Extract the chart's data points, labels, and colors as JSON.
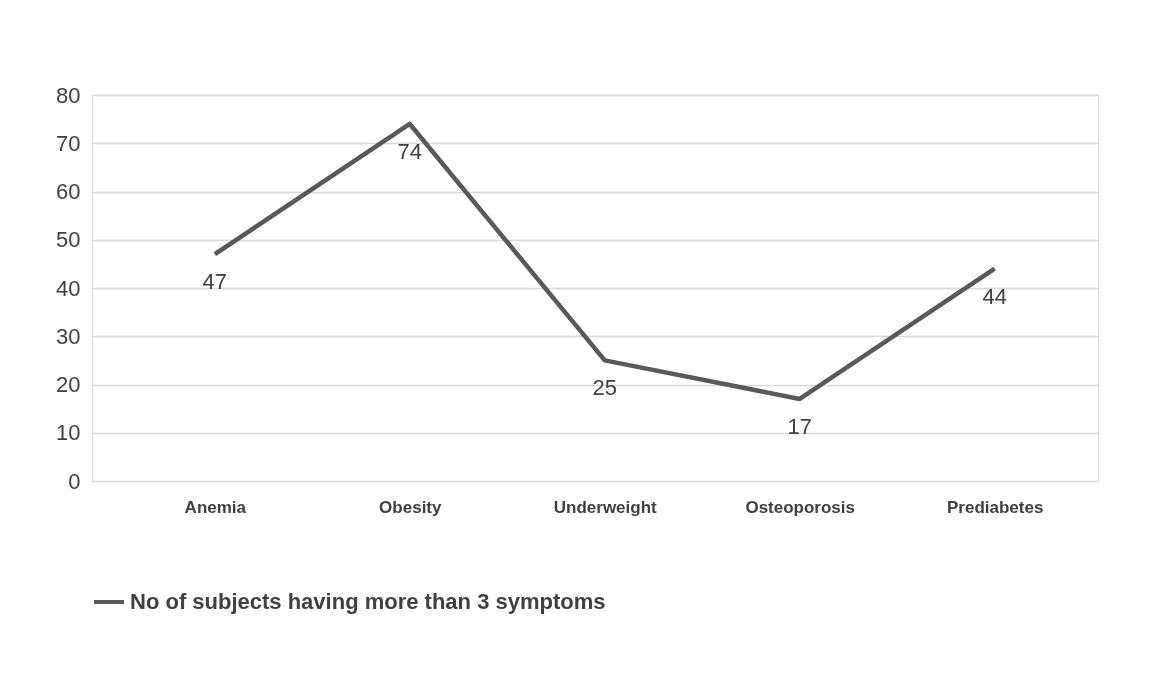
{
  "chart_data": {
    "type": "line",
    "categories": [
      "Anemia",
      "Obesity",
      "Underweight",
      "Osteoporosis",
      "Prediabetes"
    ],
    "series": [
      {
        "name": "No of subjects having more than 3 symptoms",
        "color": "#595959",
        "values": [
          47,
          74,
          25,
          17,
          44
        ]
      }
    ],
    "ylim": [
      0,
      80
    ],
    "yticks": [
      0,
      10,
      20,
      30,
      40,
      50,
      60,
      70,
      80
    ],
    "grid": "y",
    "legend": "bottom",
    "data_labels": true,
    "marker": "none",
    "line_style": "solid"
  }
}
